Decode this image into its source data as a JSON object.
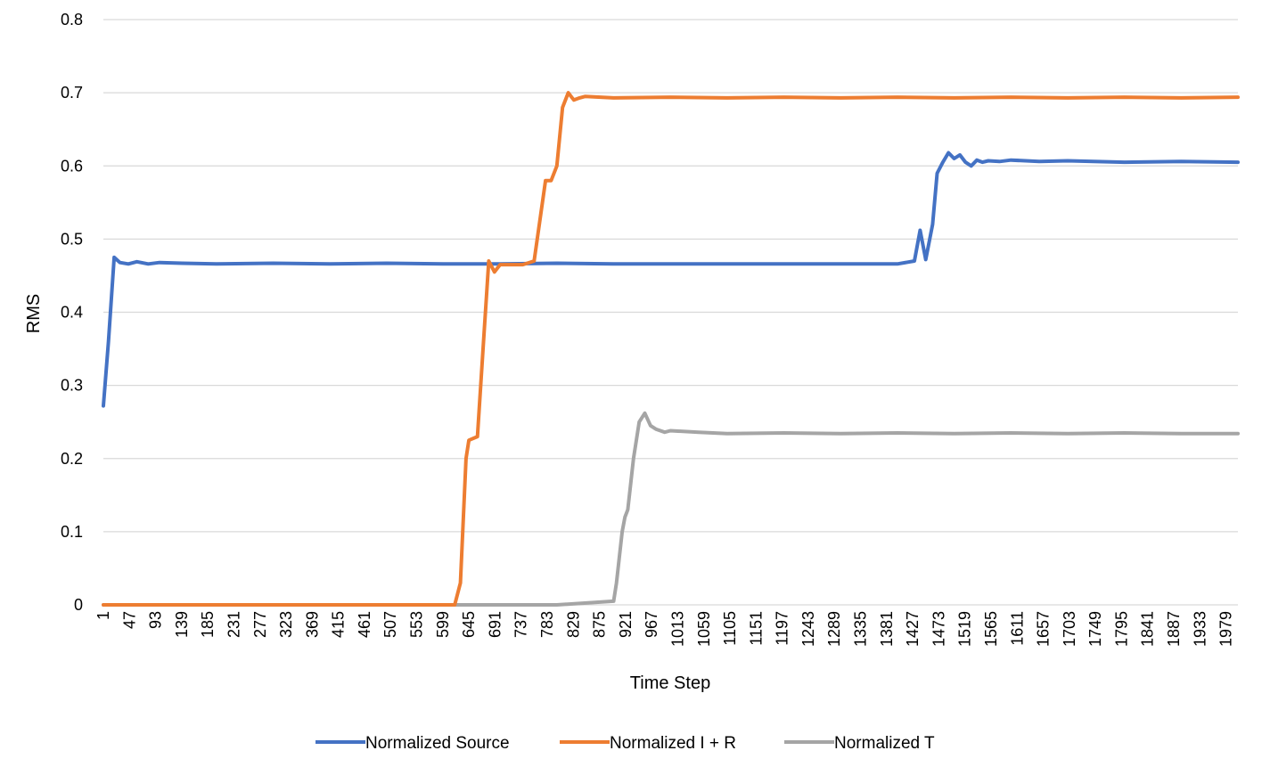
{
  "chart_data": {
    "type": "line",
    "title": "",
    "xlabel": "Time Step",
    "ylabel": "RMS",
    "ylim": [
      0,
      0.8
    ],
    "yticks": [
      0,
      0.1,
      0.2,
      0.3,
      0.4,
      0.5,
      0.6,
      0.7,
      0.8
    ],
    "ytick_labels": [
      "0",
      "0.1",
      "0.2",
      "0.3",
      "0.4",
      "0.5",
      "0.6",
      "0.7",
      "0.8"
    ],
    "xlim": [
      1,
      2000
    ],
    "xticks": [
      1,
      47,
      93,
      139,
      185,
      231,
      277,
      323,
      369,
      415,
      461,
      507,
      553,
      599,
      645,
      691,
      737,
      783,
      829,
      875,
      921,
      967,
      1013,
      1059,
      1105,
      1151,
      1197,
      1243,
      1289,
      1335,
      1381,
      1427,
      1473,
      1519,
      1565,
      1611,
      1657,
      1703,
      1749,
      1795,
      1841,
      1887,
      1933,
      1979
    ],
    "grid": true,
    "legend": "bottom",
    "series": [
      {
        "name": "Normalized Source",
        "color": "#4472c4",
        "x": [
          1,
          10,
          20,
          30,
          45,
          60,
          80,
          100,
          140,
          200,
          300,
          400,
          500,
          600,
          700,
          800,
          900,
          1000,
          1100,
          1200,
          1300,
          1400,
          1430,
          1440,
          1450,
          1462,
          1470,
          1480,
          1490,
          1500,
          1510,
          1520,
          1530,
          1540,
          1550,
          1560,
          1580,
          1600,
          1650,
          1700,
          1800,
          1900,
          2000
        ],
        "y": [
          0.272,
          0.36,
          0.475,
          0.468,
          0.466,
          0.469,
          0.466,
          0.468,
          0.467,
          0.466,
          0.467,
          0.466,
          0.467,
          0.466,
          0.466,
          0.467,
          0.466,
          0.466,
          0.466,
          0.466,
          0.466,
          0.466,
          0.47,
          0.512,
          0.472,
          0.52,
          0.59,
          0.605,
          0.618,
          0.61,
          0.615,
          0.605,
          0.6,
          0.608,
          0.605,
          0.607,
          0.606,
          0.608,
          0.606,
          0.607,
          0.605,
          0.606,
          0.605
        ]
      },
      {
        "name": "Normalized I + R",
        "color": "#ed7d31",
        "x": [
          1,
          100,
          200,
          300,
          400,
          500,
          600,
          620,
          630,
          640,
          645,
          660,
          670,
          680,
          690,
          700,
          720,
          740,
          760,
          780,
          790,
          800,
          810,
          820,
          825,
          830,
          840,
          850,
          900,
          1000,
          1100,
          1200,
          1300,
          1400,
          1500,
          1600,
          1700,
          1800,
          1900,
          2000
        ],
        "y": [
          0,
          0,
          0,
          0,
          0,
          0,
          0,
          0,
          0.03,
          0.2,
          0.225,
          0.23,
          0.35,
          0.47,
          0.455,
          0.465,
          0.465,
          0.465,
          0.47,
          0.58,
          0.58,
          0.6,
          0.68,
          0.7,
          0.695,
          0.69,
          0.693,
          0.695,
          0.693,
          0.694,
          0.693,
          0.694,
          0.693,
          0.694,
          0.693,
          0.694,
          0.693,
          0.694,
          0.693,
          0.694
        ]
      },
      {
        "name": "Normalized T",
        "color": "#a5a5a5",
        "x": [
          1,
          200,
          400,
          600,
          800,
          900,
          905,
          915,
          920,
          925,
          935,
          945,
          955,
          965,
          975,
          990,
          1000,
          1050,
          1100,
          1200,
          1300,
          1400,
          1500,
          1600,
          1700,
          1800,
          1900,
          2000
        ],
        "y": [
          0,
          0,
          0,
          0,
          0,
          0.005,
          0.03,
          0.1,
          0.12,
          0.13,
          0.2,
          0.25,
          0.262,
          0.245,
          0.24,
          0.236,
          0.238,
          0.236,
          0.234,
          0.235,
          0.234,
          0.235,
          0.234,
          0.235,
          0.234,
          0.235,
          0.234,
          0.234
        ]
      }
    ]
  }
}
